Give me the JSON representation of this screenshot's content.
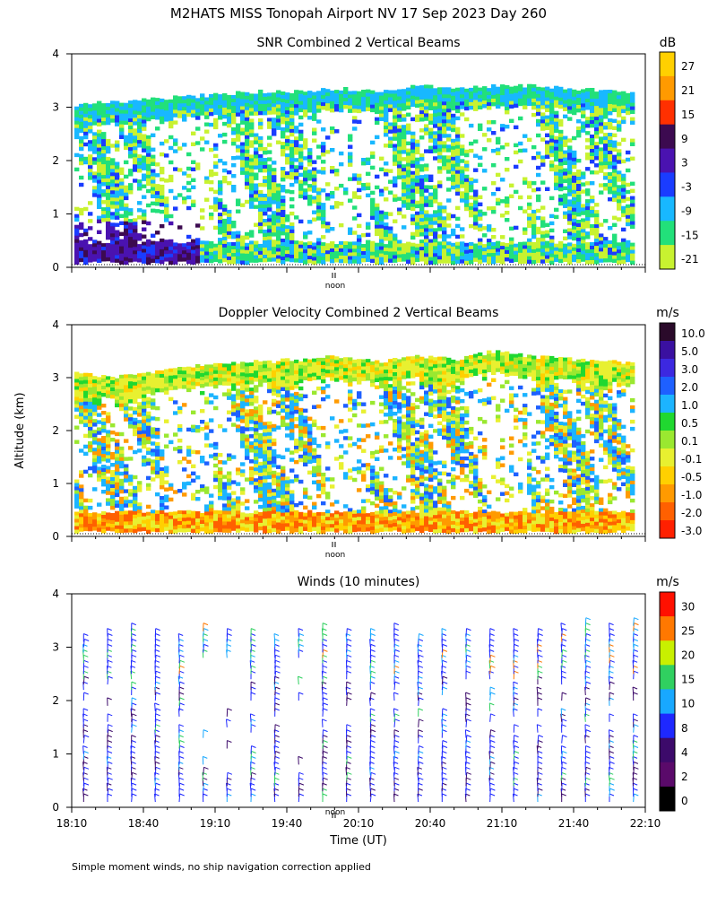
{
  "page": {
    "title": "M2HATS MISS Tonopah Airport NV  17 Sep 2023 Day 260",
    "ylabel": "Altitude (km)",
    "footnote": "Simple moment winds, no ship navigation correction applied",
    "noon_label": "noon"
  },
  "chart_data": [
    {
      "type": "heatmap",
      "title": "SNR Combined 2 Vertical Beams",
      "unit": "dB",
      "ylim": [
        0,
        4
      ],
      "yticks": [
        "0",
        "1",
        "2",
        "3",
        "4"
      ],
      "colorbar_labels": [
        "27",
        "21",
        "15",
        "9",
        "3",
        "-3",
        "-9",
        "-15",
        "-21"
      ],
      "colorbar_colors": [
        "#ffd000",
        "#ff9a00",
        "#ff3000",
        "#3c0a50",
        "#4a12b0",
        "#1a3cff",
        "#18b8ff",
        "#22e07a",
        "#c8f230"
      ],
      "cloud_top_km": [
        3.05,
        3.1,
        3.15,
        3.2,
        3.25,
        3.3,
        3.3,
        3.35,
        3.3,
        3.4,
        3.35,
        3.4,
        3.4,
        3.35,
        3.3,
        3.3
      ],
      "time_range": "18:10-22:10"
    },
    {
      "type": "heatmap",
      "title": "Doppler Velocity Combined 2 Vertical Beams",
      "unit": "m/s",
      "ylim": [
        0,
        4
      ],
      "yticks": [
        "0",
        "1",
        "2",
        "3",
        "4"
      ],
      "colorbar_labels": [
        "10.0",
        "5.0",
        "3.0",
        "2.0",
        "1.0",
        "0.5",
        "0.1",
        "-0.1",
        "-0.5",
        "-1.0",
        "-2.0",
        "-3.0"
      ],
      "colorbar_colors": [
        "#2a0a2a",
        "#3a10a0",
        "#3c28e0",
        "#1e60ff",
        "#1cb4ff",
        "#20d830",
        "#9ae830",
        "#e8f030",
        "#ffd000",
        "#ff9a00",
        "#ff6000",
        "#ff2000"
      ],
      "cloud_top_km": [
        3.1,
        3.0,
        3.1,
        3.2,
        3.3,
        3.3,
        3.35,
        3.4,
        3.3,
        3.4,
        3.35,
        3.5,
        3.4,
        3.35,
        3.3,
        3.3
      ],
      "time_range": "18:10-22:10"
    },
    {
      "type": "scatter",
      "title": "Winds (10 minutes)",
      "unit": "m/s",
      "ylim": [
        0,
        4
      ],
      "yticks": [
        "0",
        "1",
        "2",
        "3",
        "4"
      ],
      "xlabel": "Time (UT)",
      "xticks": [
        "18:10",
        "18:40",
        "19:10",
        "19:40",
        "20:10",
        "20:40",
        "21:10",
        "21:40",
        "22:10"
      ],
      "colorbar_labels": [
        "30",
        "25",
        "20",
        "15",
        "10",
        "8",
        "4",
        "2",
        "0"
      ],
      "colorbar_colors": [
        "#ff1000",
        "#ff7800",
        "#c8f000",
        "#30d060",
        "#18a8ff",
        "#1e28ff",
        "#3c0a6a",
        "#5a0a6a",
        "#000000"
      ],
      "profile_times_min_after_1810": [
        5,
        15,
        25,
        35,
        45,
        55,
        65,
        75,
        85,
        95,
        105,
        115,
        125,
        135,
        145,
        155,
        165,
        175,
        185,
        195,
        205,
        215,
        225,
        235
      ]
    }
  ]
}
